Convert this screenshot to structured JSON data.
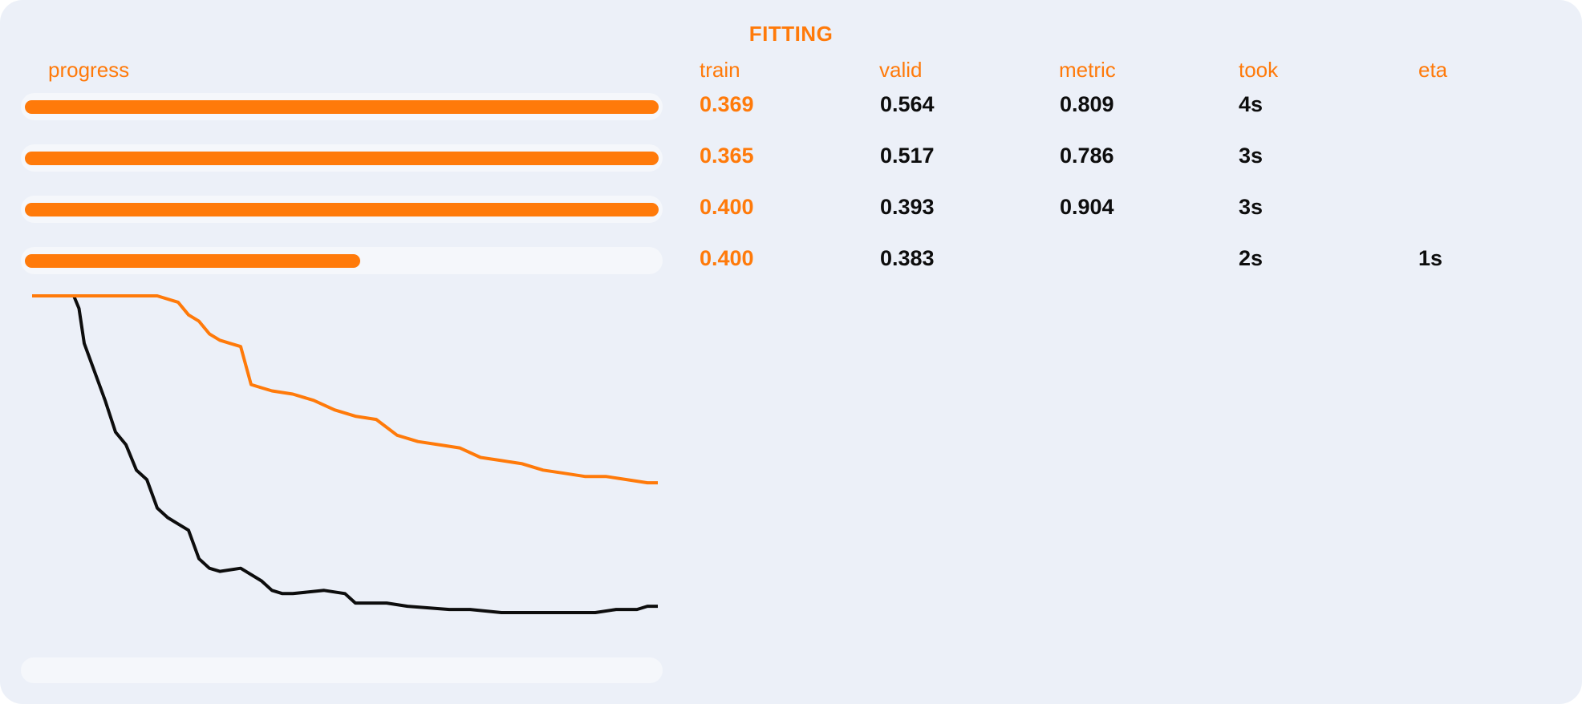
{
  "title": "FITTING",
  "headers": {
    "progress": "progress",
    "train": "train",
    "valid": "valid",
    "metric": "metric",
    "took": "took",
    "eta": "eta"
  },
  "rows": [
    {
      "progress": 1.0,
      "train": "0.369",
      "valid": "0.564",
      "metric": "0.809",
      "took": "4s",
      "eta": ""
    },
    {
      "progress": 1.0,
      "train": "0.365",
      "valid": "0.517",
      "metric": "0.786",
      "took": "3s",
      "eta": ""
    },
    {
      "progress": 1.0,
      "train": "0.400",
      "valid": "0.393",
      "metric": "0.904",
      "took": "3s",
      "eta": ""
    },
    {
      "progress": 0.53,
      "train": "0.400",
      "valid": "0.383",
      "metric": "",
      "took": "2s",
      "eta": "1s"
    }
  ],
  "overall_progress": 0.0,
  "colors": {
    "accent": "#ff7a0a",
    "text": "#0d0d0d",
    "panel": "#ecf0f8",
    "track": "#f5f7fb"
  },
  "chart_data": {
    "type": "line",
    "title": "",
    "xlabel": "",
    "ylabel": "",
    "series": [
      {
        "color": "#ff7a0a",
        "x": [
          0,
          6,
          12,
          18,
          24,
          28,
          30,
          32,
          34,
          36,
          38,
          40,
          42,
          44,
          46,
          50,
          54,
          58,
          62,
          66,
          70,
          74,
          78,
          82,
          86,
          90,
          94,
          98,
          102,
          106,
          110,
          114,
          118,
          120
        ],
        "values": [
          1.0,
          1.0,
          1.0,
          1.0,
          1.0,
          0.98,
          0.94,
          0.92,
          0.88,
          0.86,
          0.85,
          0.84,
          0.72,
          0.71,
          0.7,
          0.69,
          0.67,
          0.64,
          0.62,
          0.61,
          0.56,
          0.54,
          0.53,
          0.52,
          0.49,
          0.48,
          0.47,
          0.45,
          0.44,
          0.43,
          0.43,
          0.42,
          0.41,
          0.41
        ]
      },
      {
        "color": "#0d0d0d",
        "x": [
          0,
          4,
          8,
          9,
          10,
          12,
          14,
          16,
          18,
          20,
          22,
          24,
          26,
          28,
          30,
          32,
          34,
          36,
          40,
          44,
          46,
          48,
          50,
          56,
          60,
          62,
          64,
          68,
          72,
          80,
          84,
          90,
          96,
          100,
          104,
          108,
          112,
          116,
          118,
          120
        ],
        "values": [
          1.0,
          1.0,
          1.0,
          0.96,
          0.85,
          0.76,
          0.67,
          0.57,
          0.53,
          0.45,
          0.42,
          0.33,
          0.3,
          0.28,
          0.26,
          0.17,
          0.14,
          0.13,
          0.14,
          0.1,
          0.07,
          0.06,
          0.06,
          0.07,
          0.06,
          0.03,
          0.03,
          0.03,
          0.02,
          0.01,
          0.01,
          0.0,
          0.0,
          0.0,
          0.0,
          0.0,
          0.01,
          0.01,
          0.02,
          0.02
        ]
      }
    ],
    "xlim": [
      0,
      120
    ],
    "ylim": [
      0,
      1
    ],
    "grid": false,
    "legend": "none"
  }
}
